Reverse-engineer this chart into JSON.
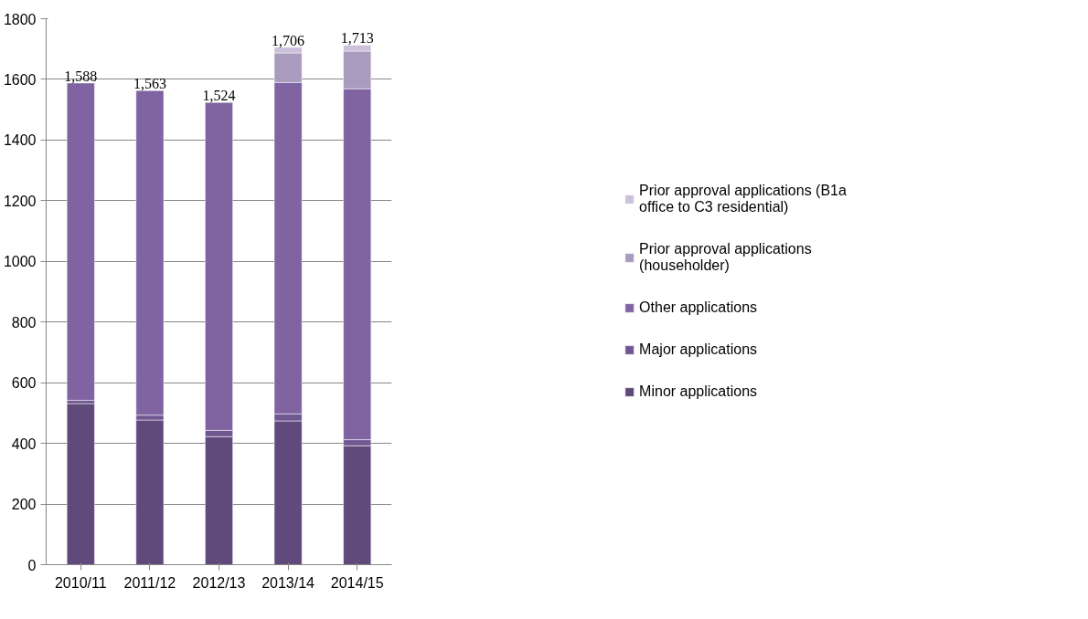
{
  "chart_data": {
    "type": "bar",
    "stacked": true,
    "categories": [
      "2010/11",
      "2011/12",
      "2012/13",
      "2013/14",
      "2014/15"
    ],
    "series": [
      {
        "name": "Minor applications",
        "color": "#604a7b",
        "values": [
          531,
          477,
          422,
          474,
          392
        ]
      },
      {
        "name": "Major applications",
        "color": "#6f5891",
        "values": [
          11,
          16,
          21,
          23,
          20
        ]
      },
      {
        "name": "Other applications",
        "color": "#8064a2",
        "values": [
          1046,
          1070,
          1081,
          1093,
          1157
        ]
      },
      {
        "name": "Prior approval applications (householder)",
        "color": "#a99bbd",
        "values": [
          null,
          null,
          null,
          97,
          124
        ]
      },
      {
        "name": "Prior approval applications (B1a office to C3 residential)",
        "color": "#ccc1da",
        "values": [
          null,
          null,
          null,
          19,
          20
        ]
      }
    ],
    "totals": [
      "1,588",
      "1,563",
      "1,524",
      "1,706",
      "1,713"
    ],
    "ylim": [
      0,
      1800
    ],
    "yticks": [
      0,
      200,
      400,
      600,
      800,
      1000,
      1200,
      1400,
      1600,
      1800
    ],
    "grid": "y",
    "legend": "right"
  }
}
